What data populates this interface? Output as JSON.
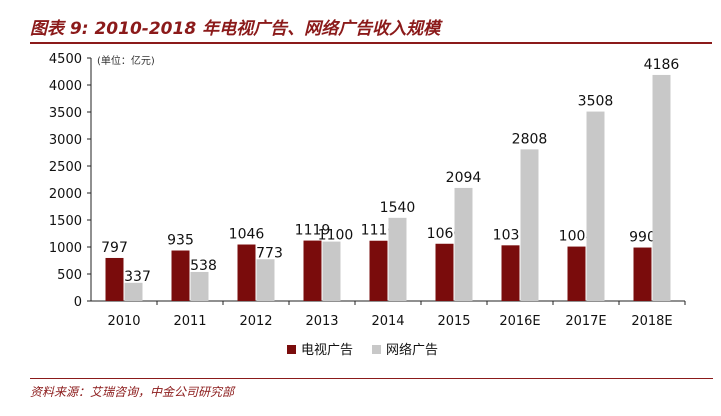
{
  "title": "图表 9: 2010-2018 年电视广告、网络广告收入规模",
  "source_note": "资料来源：艾瑞咨询，中金公司研究部",
  "colors": {
    "brand": "#8b1a1a",
    "tv": "#7a0c0c",
    "online": "#c8c8c8"
  },
  "chart_data": {
    "type": "bar",
    "unit_note": "(单位：亿元)",
    "categories": [
      "2010",
      "2011",
      "2012",
      "2013",
      "2014",
      "2015",
      "2016E",
      "2017E",
      "2018E"
    ],
    "series": [
      {
        "name": "电视广告",
        "values": [
          797,
          935,
          1046,
          1119,
          1116,
          1060,
          1031,
          1008,
          990
        ]
      },
      {
        "name": "网络广告",
        "values": [
          337,
          538,
          773,
          1100,
          1540,
          2094,
          2808,
          3508,
          4186
        ]
      }
    ],
    "ylim": [
      0,
      4500
    ],
    "yticks": [
      0,
      500,
      1000,
      1500,
      2000,
      2500,
      3000,
      3500,
      4000,
      4500
    ],
    "grid": false,
    "legend_position": "bottom-center"
  }
}
